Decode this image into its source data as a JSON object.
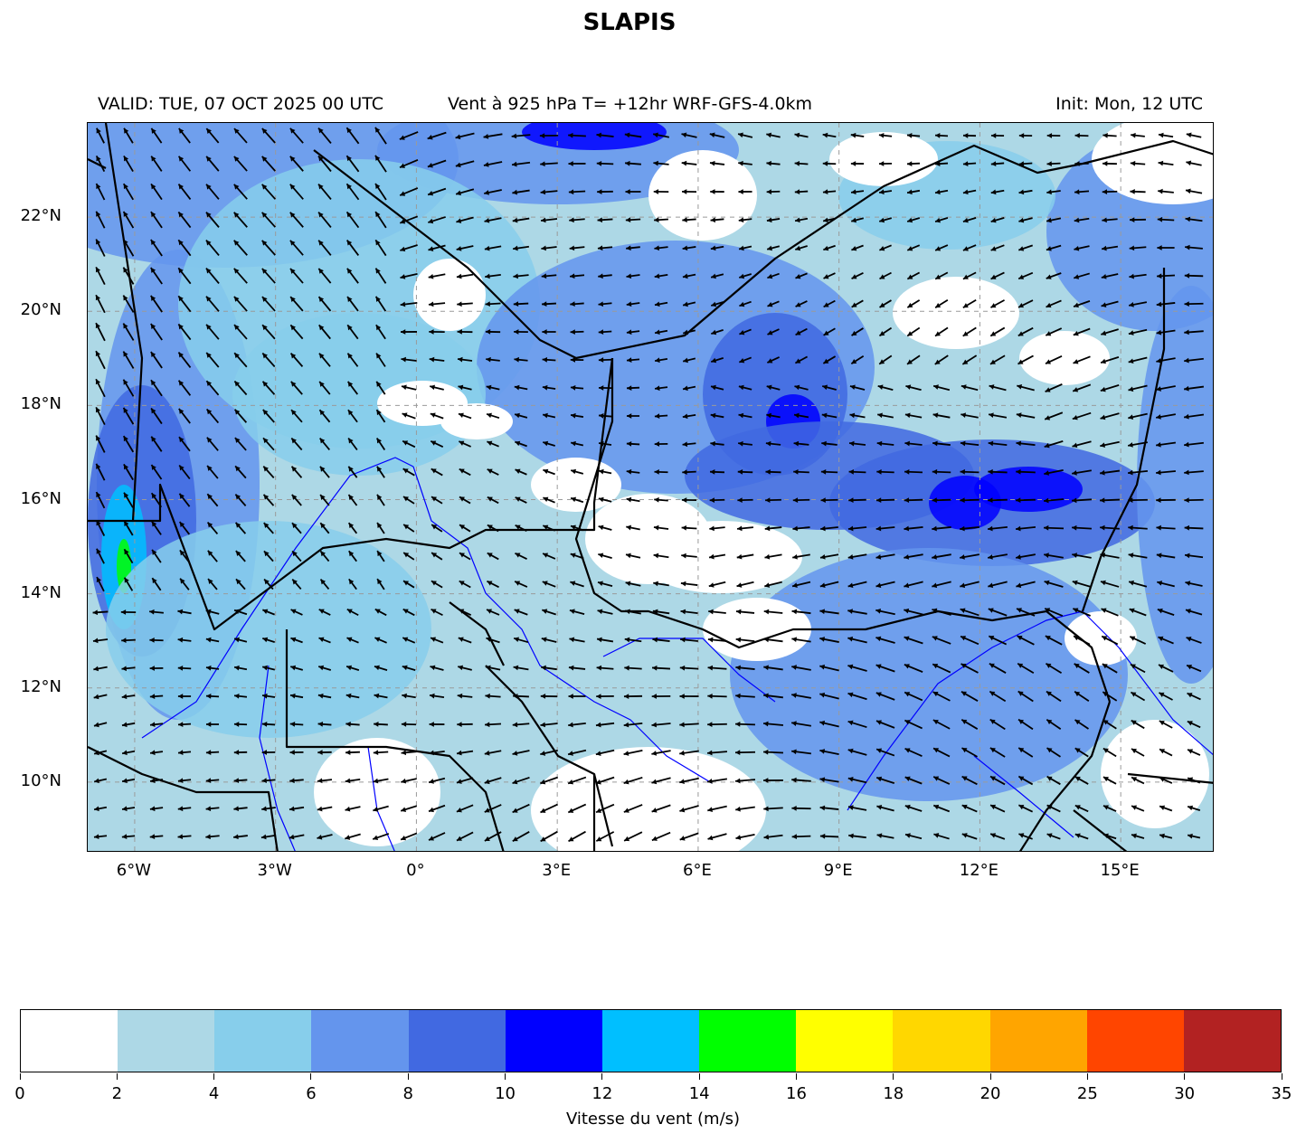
{
  "title": "SLAPIS",
  "header": {
    "valid": "VALID: TUE, 07 OCT 2025 00 UTC",
    "field": "Vent à 925 hPa T= +12hr  WRF-GFS-4.0km",
    "init": "Init: Mon, 12 UTC"
  },
  "map": {
    "lon_range": [
      -7,
      17
    ],
    "lat_range": [
      8.5,
      24
    ],
    "lat_ticks": [
      {
        "value": 22,
        "label": "22°N"
      },
      {
        "value": 20,
        "label": "20°N"
      },
      {
        "value": 18,
        "label": "18°N"
      },
      {
        "value": 16,
        "label": "16°N"
      },
      {
        "value": 14,
        "label": "14°N"
      },
      {
        "value": 12,
        "label": "12°N"
      },
      {
        "value": 10,
        "label": "10°N"
      }
    ],
    "lon_ticks": [
      {
        "value": -6,
        "label": "6°W"
      },
      {
        "value": -3,
        "label": "3°W"
      },
      {
        "value": 0,
        "label": "0°"
      },
      {
        "value": 3,
        "label": "3°E"
      },
      {
        "value": 6,
        "label": "6°E"
      },
      {
        "value": 9,
        "label": "9°E"
      },
      {
        "value": 12,
        "label": "12°E"
      },
      {
        "value": 15,
        "label": "15°E"
      }
    ],
    "gridlines": "dashed",
    "background_color": "#add8e6",
    "wind_field": "quiver",
    "borders_color": "#000000",
    "rivers_color": "#0000ff"
  },
  "colorbar": {
    "title": "Vitesse du vent (m/s)",
    "boundaries": [
      "0",
      "2",
      "4",
      "6",
      "8",
      "10",
      "12",
      "14",
      "16",
      "18",
      "20",
      "25",
      "30",
      "35"
    ],
    "colors": [
      "#ffffff",
      "#add8e6",
      "#87ceeb",
      "#6495ed",
      "#4169e1",
      "#0000ff",
      "#00bfff",
      "#00ff00",
      "#ffff00",
      "#ffd700",
      "#ffa500",
      "#ff4500",
      "#b22222"
    ]
  }
}
